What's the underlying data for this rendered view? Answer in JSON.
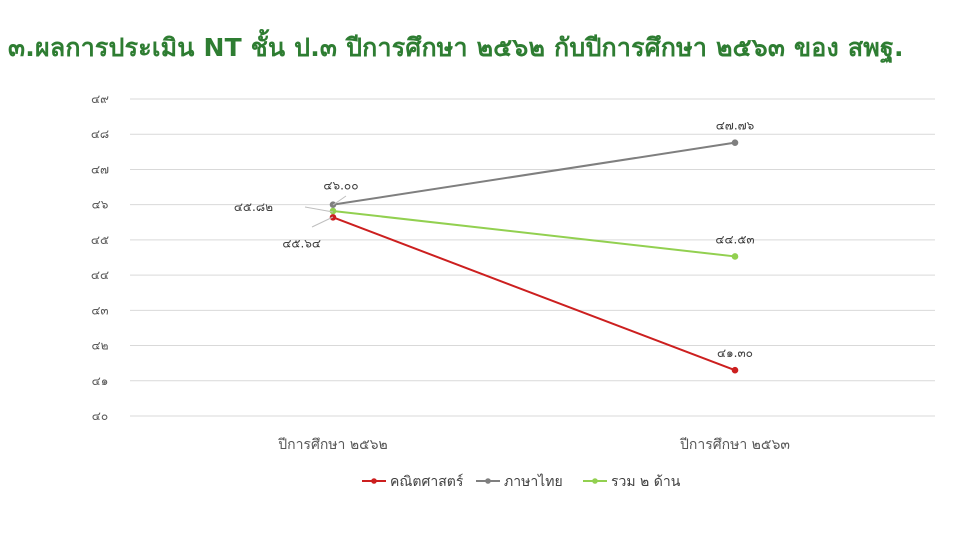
{
  "title": "๓.ผลการประเมิน NT ชั้น ป.๓ ปีการศึกษา ๒๕๖๒ กับปีการศึกษา ๒๕๖๓ ของ สพฐ.",
  "chart_data": {
    "type": "line",
    "categories": [
      "ปีการศึกษา ๒๕๖๒",
      "ปีการศึกษา ๒๕๖๓"
    ],
    "ylim": [
      40,
      49
    ],
    "yticks": [
      40,
      41,
      42,
      43,
      44,
      45,
      46,
      47,
      48,
      49
    ],
    "ytick_labels": [
      "๔๐",
      "๔๑",
      "๔๒",
      "๔๓",
      "๔๔",
      "๔๕",
      "๔๖",
      "๔๗",
      "๔๘",
      "๔๙"
    ],
    "grid": true,
    "legend_position": "bottom",
    "series": [
      {
        "name": "คณิตศาสตร์",
        "color": "#cc1f1f",
        "values": [
          45.64,
          41.3
        ],
        "labels": [
          "๔๕.๖๔",
          "๔๑.๓๐"
        ]
      },
      {
        "name": "ภาษาไทย",
        "color": "#7f7f7f",
        "values": [
          46.0,
          47.76
        ],
        "labels": [
          "๔๖.๐๐",
          "๔๗.๗๖"
        ]
      },
      {
        "name": "รวม ๒ ด้าน",
        "color": "#92d050",
        "values": [
          45.82,
          44.53
        ],
        "labels": [
          "๔๕.๘๒",
          "๔๔.๕๓"
        ]
      }
    ]
  }
}
